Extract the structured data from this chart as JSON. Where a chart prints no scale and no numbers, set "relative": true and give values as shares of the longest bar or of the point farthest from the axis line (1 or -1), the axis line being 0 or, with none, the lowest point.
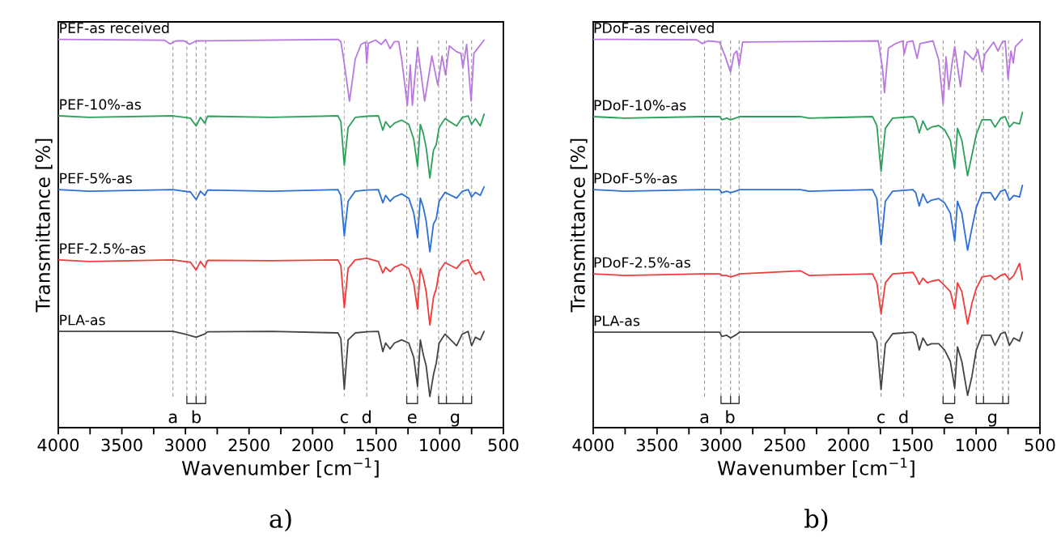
{
  "chart_data": [
    {
      "type": "line",
      "title": "a)",
      "xlabel": "Wavenumber [cm$^{−1}$]",
      "ylabel": "Transmittance [%]",
      "relative": true,
      "legend": false,
      "grid": false,
      "tick_labels": "x",
      "marker": "none",
      "line_style": "solid",
      "xlim": [
        4000,
        500
      ],
      "xticks": [
        4000,
        {
          "value": 3750,
          "label": null
        },
        3500,
        {
          "value": 3250,
          "label": null
        },
        3000,
        {
          "value": 2750,
          "label": null
        },
        2500,
        {
          "value": 2250,
          "label": null
        },
        2000,
        {
          "value": 1750,
          "label": null
        },
        1500,
        {
          "value": 1250,
          "label": null
        },
        1000,
        {
          "value": 750,
          "label": null
        },
        500
      ],
      "x": [
        3996,
        3757,
        3098,
        3007,
        2961,
        2916,
        2882,
        2848,
        2825,
        2324,
        1801,
        1778,
        1751,
        1721,
        1665,
        1574,
        1483,
        1448,
        1426,
        1391,
        1357,
        1300,
        1244,
        1205,
        1175,
        1153,
        1130,
        1107,
        1078,
        1050,
        1028,
        1005,
        959,
        868,
        823,
        777,
        750,
        720,
        682,
        652
      ],
      "series": [
        {
          "name": "PEF-as received",
          "color": "#b878e0",
          "x": [
            3996,
            3166,
            3121,
            3075,
            3007,
            2968,
            2916,
            1801,
            1778,
            1756,
            1710,
            1665,
            1619,
            1585,
            1574,
            1562,
            1505,
            1460,
            1426,
            1391,
            1357,
            1323,
            1300,
            1255,
            1232,
            1216,
            1175,
            1119,
            1062,
            1016,
            982,
            955,
            925,
            868,
            834,
            818,
            789,
            754,
            732,
            652
          ],
          "values": [
            1.0,
            0.998,
            0.988,
            0.996,
            0.996,
            0.987,
            0.996,
            1.0,
            0.994,
            0.949,
            0.841,
            0.949,
            0.987,
            0.993,
            0.938,
            0.99,
            0.998,
            0.987,
            1.0,
            0.976,
            0.994,
            0.994,
            0.949,
            0.83,
            0.934,
            0.83,
            0.979,
            0.841,
            0.957,
            0.882,
            0.957,
            0.908,
            0.983,
            0.968,
            0.964,
            0.927,
            0.987,
            0.841,
            0.964,
            0.998
          ]
        },
        {
          "name": "PEF-10%-as",
          "color": "#2ca05a",
          "values": [
            0.803,
            0.799,
            0.803,
            0.799,
            0.797,
            0.777,
            0.799,
            0.784,
            0.802,
            0.799,
            0.803,
            0.788,
            0.676,
            0.773,
            0.799,
            0.802,
            0.803,
            0.766,
            0.788,
            0.773,
            0.784,
            0.792,
            0.781,
            0.743,
            0.673,
            0.781,
            0.758,
            0.721,
            0.643,
            0.714,
            0.729,
            0.773,
            0.796,
            0.777,
            0.799,
            0.803,
            0.781,
            0.796,
            0.777,
            0.807
          ]
        },
        {
          "name": "PEF-5%-as",
          "color": "#2b6fd6",
          "values": [
            0.613,
            0.609,
            0.613,
            0.609,
            0.607,
            0.587,
            0.609,
            0.598,
            0.612,
            0.609,
            0.613,
            0.598,
            0.494,
            0.583,
            0.609,
            0.612,
            0.613,
            0.579,
            0.598,
            0.583,
            0.594,
            0.602,
            0.591,
            0.553,
            0.49,
            0.591,
            0.568,
            0.531,
            0.453,
            0.524,
            0.538,
            0.583,
            0.606,
            0.591,
            0.609,
            0.613,
            0.594,
            0.606,
            0.598,
            0.62
          ]
        },
        {
          "name": "PEF-2.5%-as",
          "color": "#f03c3c",
          "values": [
            0.432,
            0.428,
            0.432,
            0.428,
            0.426,
            0.406,
            0.428,
            0.413,
            0.431,
            0.43,
            0.432,
            0.417,
            0.309,
            0.41,
            0.432,
            0.436,
            0.428,
            0.398,
            0.413,
            0.402,
            0.413,
            0.421,
            0.41,
            0.372,
            0.305,
            0.41,
            0.387,
            0.35,
            0.264,
            0.335,
            0.358,
            0.402,
            0.425,
            0.41,
            0.428,
            0.432,
            0.41,
            0.395,
            0.402,
            0.38
          ]
        },
        {
          "name": "PLA-as",
          "color": "#444444",
          "values": [
            0.248,
            0.248,
            0.248,
            0.241,
            0.237,
            0.233,
            0.237,
            0.241,
            0.247,
            0.248,
            0.244,
            0.229,
            0.099,
            0.226,
            0.244,
            0.247,
            0.248,
            0.196,
            0.218,
            0.203,
            0.218,
            0.226,
            0.218,
            0.181,
            0.106,
            0.226,
            0.188,
            0.159,
            0.08,
            0.136,
            0.166,
            0.218,
            0.241,
            0.211,
            0.241,
            0.248,
            0.211,
            0.233,
            0.226,
            0.248
          ]
        }
      ],
      "ref_lines": [
        {
          "axis": "x",
          "value": 3098,
          "label": "a",
          "color": "#999999",
          "line_style": "dashed"
        },
        {
          "axis": "x",
          "value": 2989,
          "label": "b",
          "color": "#999999",
          "line_style": "dashed"
        },
        {
          "axis": "x",
          "value": 2916,
          "label": null,
          "color": "#999999",
          "line_style": "dashed"
        },
        {
          "axis": "x",
          "value": 2841,
          "label": null,
          "color": "#999999",
          "line_style": "dashed"
        },
        {
          "axis": "x",
          "value": 1751,
          "label": "c",
          "color": "#b4b4b4",
          "line_style": "dashed"
        },
        {
          "axis": "x",
          "value": 1574,
          "label": "d",
          "color": "#999999",
          "line_style": "dashed"
        },
        {
          "axis": "x",
          "value": 1260,
          "label": "e",
          "color": "#999999",
          "line_style": "dashed"
        },
        {
          "axis": "x",
          "value": 1175,
          "label": null,
          "color": "#999999",
          "line_style": "dashed"
        },
        {
          "axis": "x",
          "value": 1009,
          "label": "g",
          "color": "#999999",
          "line_style": "dashed"
        },
        {
          "axis": "x",
          "value": 948,
          "label": null,
          "color": "#999999",
          "line_style": "dashed"
        },
        {
          "axis": "x",
          "value": 818,
          "label": null,
          "color": "#999999",
          "line_style": "dashed"
        },
        {
          "axis": "x",
          "value": 750,
          "label": null,
          "color": "#999999",
          "line_style": "dashed"
        }
      ]
    },
    {
      "type": "line",
      "title": "b)",
      "xlabel": "Wavenumber [cm$^{−1}$]",
      "ylabel": "Transmittance [%]",
      "relative": true,
      "legend": false,
      "grid": false,
      "tick_labels": "x",
      "marker": "none",
      "line_style": "solid",
      "xlim": [
        4000,
        500
      ],
      "xticks": [
        4000,
        {
          "value": 3750,
          "label": null
        },
        3500,
        {
          "value": 3250,
          "label": null
        },
        3000,
        {
          "value": 2750,
          "label": null
        },
        2500,
        {
          "value": 2250,
          "label": null
        },
        2000,
        {
          "value": 1750,
          "label": null
        },
        1500,
        {
          "value": 1250,
          "label": null
        },
        1000,
        {
          "value": 750,
          "label": null
        },
        500
      ],
      "x": [
        4000,
        3756,
        3146,
        3010,
        2992,
        2954,
        2924,
        2886,
        2852,
        2377,
        2310,
        1812,
        1778,
        1745,
        1711,
        1654,
        1496,
        1473,
        1446,
        1417,
        1383,
        1349,
        1293,
        1247,
        1202,
        1168,
        1146,
        1112,
        1067,
        1033,
        999,
        954,
        886,
        852,
        807,
        773,
        739,
        705,
        660,
        637
      ],
      "series": [
        {
          "name": "PDoF-as received",
          "color": "#b878e0",
          "x": [
            4000,
            3191,
            3146,
            3101,
            3010,
            2965,
            2924,
            2897,
            2875,
            2857,
            2829,
            1767,
            1733,
            1718,
            1688,
            1632,
            1575,
            1564,
            1541,
            1496,
            1462,
            1440,
            1338,
            1293,
            1259,
            1236,
            1214,
            1191,
            1168,
            1123,
            1089,
            1021,
            987,
            954,
            931,
            863,
            829,
            795,
            773,
            750,
            727,
            709,
            693,
            637
          ],
          "values": [
            1.0,
            0.999,
            0.989,
            0.996,
            0.993,
            0.955,
            0.916,
            0.962,
            0.97,
            0.932,
            0.993,
            0.996,
            0.924,
            0.863,
            0.977,
            0.989,
            0.996,
            0.962,
            0.993,
            0.996,
            0.951,
            0.989,
            0.996,
            0.947,
            0.833,
            0.955,
            0.871,
            0.932,
            0.981,
            0.878,
            0.97,
            0.947,
            0.974,
            0.916,
            0.962,
            0.993,
            0.97,
            0.993,
            0.996,
            0.898,
            0.97,
            0.939,
            0.981,
            1.0
          ]
        },
        {
          "name": "PDoF-10%-as",
          "color": "#2ca05a",
          "values": [
            0.801,
            0.797,
            0.801,
            0.801,
            0.793,
            0.797,
            0.793,
            0.797,
            0.801,
            0.801,
            0.797,
            0.801,
            0.778,
            0.66,
            0.771,
            0.797,
            0.801,
            0.793,
            0.759,
            0.79,
            0.767,
            0.774,
            0.778,
            0.767,
            0.74,
            0.668,
            0.771,
            0.74,
            0.649,
            0.702,
            0.755,
            0.793,
            0.793,
            0.774,
            0.797,
            0.801,
            0.774,
            0.786,
            0.782,
            0.812
          ]
        },
        {
          "name": "PDoF-5%-as",
          "color": "#2b6fd6",
          "values": [
            0.613,
            0.609,
            0.613,
            0.613,
            0.605,
            0.609,
            0.605,
            0.609,
            0.613,
            0.613,
            0.609,
            0.613,
            0.59,
            0.472,
            0.583,
            0.609,
            0.613,
            0.605,
            0.571,
            0.602,
            0.579,
            0.586,
            0.59,
            0.579,
            0.552,
            0.48,
            0.583,
            0.552,
            0.457,
            0.514,
            0.567,
            0.605,
            0.605,
            0.586,
            0.609,
            0.613,
            0.586,
            0.598,
            0.594,
            0.624
          ]
        },
        {
          "name": "PDoF-2.5%-as",
          "color": "#f03c3c",
          "values": [
            0.396,
            0.392,
            0.396,
            0.396,
            0.392,
            0.392,
            0.388,
            0.392,
            0.396,
            0.404,
            0.392,
            0.396,
            0.373,
            0.293,
            0.373,
            0.396,
            0.4,
            0.388,
            0.369,
            0.385,
            0.373,
            0.377,
            0.381,
            0.366,
            0.35,
            0.305,
            0.373,
            0.35,
            0.267,
            0.32,
            0.358,
            0.388,
            0.392,
            0.381,
            0.392,
            0.396,
            0.381,
            0.392,
            0.423,
            0.381
          ]
        },
        {
          "name": "PLA-as",
          "color": "#444444",
          "values": [
            0.246,
            0.246,
            0.246,
            0.246,
            0.235,
            0.238,
            0.231,
            0.238,
            0.246,
            0.246,
            0.246,
            0.246,
            0.223,
            0.098,
            0.216,
            0.242,
            0.246,
            0.238,
            0.2,
            0.231,
            0.212,
            0.216,
            0.216,
            0.2,
            0.17,
            0.102,
            0.208,
            0.17,
            0.083,
            0.132,
            0.2,
            0.238,
            0.238,
            0.212,
            0.242,
            0.246,
            0.212,
            0.231,
            0.223,
            0.246
          ]
        }
      ],
      "ref_lines": [
        {
          "axis": "x",
          "value": 3128,
          "label": "a",
          "color": "#999999",
          "line_style": "dashed"
        },
        {
          "axis": "x",
          "value": 2999,
          "label": "b",
          "color": "#999999",
          "line_style": "dashed"
        },
        {
          "axis": "x",
          "value": 2924,
          "label": null,
          "color": "#999999",
          "line_style": "dashed"
        },
        {
          "axis": "x",
          "value": 2857,
          "label": null,
          "color": "#999999",
          "line_style": "dashed"
        },
        {
          "axis": "x",
          "value": 1745,
          "label": "c",
          "color": "#999999",
          "line_style": "dashed"
        },
        {
          "axis": "x",
          "value": 1568,
          "label": "d",
          "color": "#999999",
          "line_style": "dashed"
        },
        {
          "axis": "x",
          "value": 1259,
          "label": "e",
          "color": "#999999",
          "line_style": "dashed"
        },
        {
          "axis": "x",
          "value": 1168,
          "label": null,
          "color": "#999999",
          "line_style": "dashed"
        },
        {
          "axis": "x",
          "value": 999,
          "label": "g",
          "color": "#999999",
          "line_style": "dashed"
        },
        {
          "axis": "x",
          "value": 942,
          "label": null,
          "color": "#999999",
          "line_style": "dashed"
        },
        {
          "axis": "x",
          "value": 791,
          "label": null,
          "color": "#999999",
          "line_style": "dashed"
        },
        {
          "axis": "x",
          "value": 746,
          "label": null,
          "color": "#999999",
          "line_style": "dashed"
        }
      ]
    }
  ]
}
